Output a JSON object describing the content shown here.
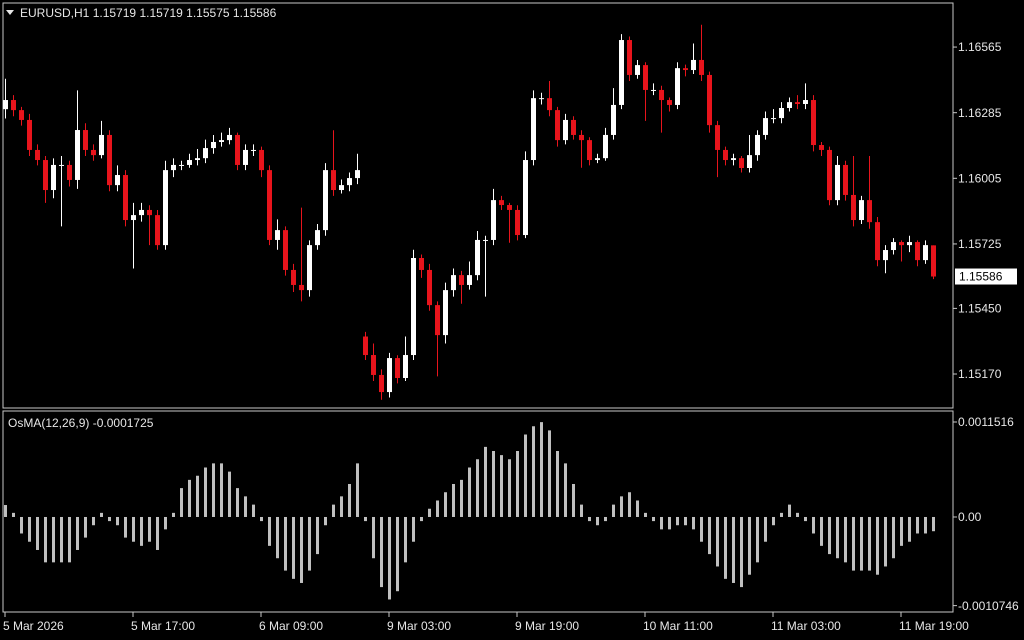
{
  "chart_data": [
    {
      "type": "candlestick",
      "symbol": "EURUSD,H1",
      "categories": [
        "5 Mar 2026",
        null,
        null,
        null,
        null,
        null,
        null,
        null,
        null,
        null,
        null,
        null,
        null,
        null,
        null,
        null,
        "5 Mar 17:00",
        null,
        null,
        null,
        null,
        null,
        null,
        null,
        null,
        null,
        null,
        null,
        null,
        null,
        null,
        null,
        "6 Mar 09:00",
        null,
        null,
        null,
        null,
        null,
        null,
        null,
        null,
        null,
        null,
        null,
        null,
        null,
        null,
        null,
        "9 Mar 03:00",
        null,
        null,
        null,
        null,
        null,
        null,
        null,
        null,
        null,
        null,
        null,
        null,
        null,
        null,
        null,
        "9 Mar 19:00",
        null,
        null,
        null,
        null,
        null,
        null,
        null,
        null,
        null,
        null,
        null,
        null,
        null,
        null,
        null,
        "10 Mar 11:00",
        null,
        null,
        null,
        null,
        null,
        null,
        null,
        null,
        null,
        null,
        null,
        null,
        null,
        null,
        null,
        "11 Mar 03:00",
        null,
        null,
        null,
        null,
        null,
        null,
        null,
        null,
        null,
        null,
        null,
        null,
        null,
        null,
        null,
        "11 Mar 19:00",
        null,
        null,
        null,
        null
      ],
      "ohlc": [
        [
          1.163,
          1.1643,
          1.1626,
          1.16339
        ],
        [
          1.16339,
          1.1636,
          1.1627,
          1.16296
        ],
        [
          1.16296,
          1.1631,
          1.1623,
          1.16254
        ],
        [
          1.16254,
          1.1628,
          1.161,
          1.16126
        ],
        [
          1.16126,
          1.1615,
          1.1606,
          1.16083
        ],
        [
          1.16083,
          1.161,
          1.159,
          1.15955
        ],
        [
          1.15955,
          1.1609,
          1.1592,
          1.16062
        ],
        [
          1.16062,
          1.161,
          1.158,
          1.16062
        ],
        [
          1.16062,
          1.1608,
          1.1597,
          1.15998
        ],
        [
          1.15998,
          1.1638,
          1.1596,
          1.16211
        ],
        [
          1.16211,
          1.1624,
          1.161,
          1.16126
        ],
        [
          1.16126,
          1.1615,
          1.1608,
          1.16104
        ],
        [
          1.16104,
          1.1625,
          1.1609,
          1.1619
        ],
        [
          1.1619,
          1.1621,
          1.1595,
          1.15976
        ],
        [
          1.15976,
          1.1606,
          1.1595,
          1.16019
        ],
        [
          1.16019,
          1.1604,
          1.158,
          1.15827
        ],
        [
          1.15827,
          1.159,
          1.1562,
          1.15848
        ],
        [
          1.15848,
          1.159,
          1.1582,
          1.1587
        ],
        [
          1.1587,
          1.1589,
          1.1572,
          1.15848
        ],
        [
          1.15848,
          1.1587,
          1.157,
          1.1572
        ],
        [
          1.1572,
          1.1608,
          1.157,
          1.1604
        ],
        [
          1.1604,
          1.1609,
          1.1601,
          1.16062
        ],
        [
          1.16062,
          1.1608,
          1.1604,
          1.16062
        ],
        [
          1.16062,
          1.1611,
          1.1605,
          1.16083
        ],
        [
          1.16083,
          1.1613,
          1.1606,
          1.16091
        ],
        [
          1.16091,
          1.1617,
          1.1607,
          1.16134
        ],
        [
          1.16134,
          1.1619,
          1.1611,
          1.1616
        ],
        [
          1.1616,
          1.162,
          1.1614,
          1.16168
        ],
        [
          1.16168,
          1.1622,
          1.1615,
          1.1619
        ],
        [
          1.1619,
          1.162,
          1.1604,
          1.16062
        ],
        [
          1.16062,
          1.1615,
          1.1604,
          1.16126
        ],
        [
          1.16126,
          1.1615,
          1.161,
          1.16126
        ],
        [
          1.16126,
          1.1614,
          1.1601,
          1.1604
        ],
        [
          1.1604,
          1.1606,
          1.1572,
          1.15742
        ],
        [
          1.15742,
          1.1583,
          1.157,
          1.15784
        ],
        [
          1.15784,
          1.158,
          1.1559,
          1.15614
        ],
        [
          1.15614,
          1.1564,
          1.1552,
          1.1555
        ],
        [
          1.1555,
          1.1588,
          1.1548,
          1.15528
        ],
        [
          1.15528,
          1.1574,
          1.155,
          1.1572
        ],
        [
          1.1572,
          1.1581,
          1.157,
          1.15784
        ],
        [
          1.15784,
          1.1607,
          1.1576,
          1.1604
        ],
        [
          1.1604,
          1.1621,
          1.1593,
          1.15955
        ],
        [
          1.15955,
          1.16,
          1.1594,
          1.15976
        ],
        [
          1.15976,
          1.1603,
          1.1595,
          1.16006
        ],
        [
          1.16006,
          1.1611,
          1.1598,
          1.1604
        ],
        [
          1.1533,
          1.1535,
          1.1523,
          1.15251
        ],
        [
          1.15251,
          1.153,
          1.1514,
          1.15166
        ],
        [
          1.15166,
          1.1519,
          1.1506,
          1.15093
        ],
        [
          1.15093,
          1.1526,
          1.1507,
          1.15238
        ],
        [
          1.15238,
          1.1525,
          1.1513,
          1.15153
        ],
        [
          1.15153,
          1.1533,
          1.1514,
          1.15251
        ],
        [
          1.15251,
          1.157,
          1.1523,
          1.15665
        ],
        [
          1.15665,
          1.1568,
          1.1558,
          1.15614
        ],
        [
          1.15614,
          1.1564,
          1.1544,
          1.15464
        ],
        [
          1.15464,
          1.1548,
          1.1516,
          1.15336
        ],
        [
          1.15336,
          1.1556,
          1.153,
          1.15528
        ],
        [
          1.15528,
          1.1562,
          1.155,
          1.15592
        ],
        [
          1.15592,
          1.1561,
          1.1547,
          1.1555
        ],
        [
          1.1555,
          1.1565,
          1.1553,
          1.15592
        ],
        [
          1.15592,
          1.1578,
          1.1557,
          1.15742
        ],
        [
          1.15742,
          1.1576,
          1.155,
          1.15742
        ],
        [
          1.15742,
          1.1596,
          1.1572,
          1.15912
        ],
        [
          1.15912,
          1.1593,
          1.1587,
          1.15891
        ],
        [
          1.15891,
          1.159,
          1.1573,
          1.1587
        ],
        [
          1.1587,
          1.1589,
          1.1574,
          1.15763
        ],
        [
          1.15763,
          1.1612,
          1.1575,
          1.16083
        ],
        [
          1.16083,
          1.1638,
          1.1606,
          1.16347
        ],
        [
          1.16347,
          1.1637,
          1.1632,
          1.16347
        ],
        [
          1.16347,
          1.1642,
          1.1627,
          1.16296
        ],
        [
          1.16296,
          1.1631,
          1.1614,
          1.16168
        ],
        [
          1.16168,
          1.1628,
          1.1615,
          1.16254
        ],
        [
          1.16254,
          1.1627,
          1.1617,
          1.1619
        ],
        [
          1.1619,
          1.1621,
          1.1605,
          1.16168
        ],
        [
          1.16168,
          1.1618,
          1.1606,
          1.16083
        ],
        [
          1.16083,
          1.1611,
          1.1607,
          1.16091
        ],
        [
          1.16091,
          1.1622,
          1.1608,
          1.1619
        ],
        [
          1.1619,
          1.1639,
          1.1617,
          1.16318
        ],
        [
          1.16318,
          1.1662,
          1.163,
          1.16595
        ],
        [
          1.16595,
          1.1661,
          1.1642,
          1.16446
        ],
        [
          1.16446,
          1.1651,
          1.1643,
          1.16488
        ],
        [
          1.16488,
          1.165,
          1.1625,
          1.16382
        ],
        [
          1.16382,
          1.1641,
          1.1636,
          1.16382
        ],
        [
          1.16382,
          1.164,
          1.162,
          1.16339
        ],
        [
          1.16339,
          1.1635,
          1.1629,
          1.16318
        ],
        [
          1.16318,
          1.165,
          1.163,
          1.16475
        ],
        [
          1.16475,
          1.1649,
          1.1644,
          1.16467
        ],
        [
          1.16467,
          1.1658,
          1.1645,
          1.1651
        ],
        [
          1.1651,
          1.1666,
          1.1642,
          1.16446
        ],
        [
          1.16446,
          1.1646,
          1.162,
          1.16232
        ],
        [
          1.16232,
          1.1625,
          1.1601,
          1.16126
        ],
        [
          1.16126,
          1.1614,
          1.1606,
          1.16083
        ],
        [
          1.16083,
          1.1611,
          1.1606,
          1.16091
        ],
        [
          1.16091,
          1.161,
          1.1603,
          1.16049
        ],
        [
          1.16049,
          1.1619,
          1.1603,
          1.16104
        ],
        [
          1.16104,
          1.1621,
          1.1608,
          1.1619
        ],
        [
          1.1619,
          1.1629,
          1.1617,
          1.16262
        ],
        [
          1.16262,
          1.163,
          1.1624,
          1.16262
        ],
        [
          1.16262,
          1.1633,
          1.1624,
          1.16305
        ],
        [
          1.16305,
          1.1635,
          1.1629,
          1.1633
        ],
        [
          1.1633,
          1.1636,
          1.163,
          1.16322
        ],
        [
          1.16322,
          1.1641,
          1.163,
          1.16339
        ],
        [
          1.16339,
          1.1636,
          1.1612,
          1.16147
        ],
        [
          1.16147,
          1.1616,
          1.161,
          1.16126
        ],
        [
          1.16126,
          1.1614,
          1.1589,
          1.15912
        ],
        [
          1.15912,
          1.161,
          1.1589,
          1.16062
        ],
        [
          1.16062,
          1.1608,
          1.1591,
          1.15934
        ],
        [
          1.15934,
          1.161,
          1.158,
          1.15827
        ],
        [
          1.15827,
          1.1593,
          1.1581,
          1.15912
        ],
        [
          1.15912,
          1.161,
          1.1579,
          1.15818
        ],
        [
          1.15818,
          1.1584,
          1.1563,
          1.15656
        ],
        [
          1.15656,
          1.1572,
          1.156,
          1.15699
        ],
        [
          1.15699,
          1.1575,
          1.1568,
          1.15733
        ],
        [
          1.15733,
          1.1574,
          1.1565,
          1.1572
        ],
        [
          1.1572,
          1.1576,
          1.1569,
          1.15733
        ],
        [
          1.15733,
          1.1574,
          1.1563,
          1.15656
        ],
        [
          1.15656,
          1.1574,
          1.1564,
          1.1572
        ],
        [
          1.15719,
          1.15719,
          1.15575,
          1.15586
        ]
      ],
      "bull_color": "#ffffff",
      "bear_color": "#e8141c",
      "ylim": [
        1.15025,
        1.16753
      ],
      "yticks": [
        1.16565,
        1.16285,
        1.16005,
        1.15725,
        {
          "value": 1.1545,
          "label": "1.15450"
        },
        {
          "value": 1.1517,
          "label": "1.15170"
        }
      ]
    },
    {
      "type": "bar",
      "title": "OsMA(12,26,9)",
      "color": "#c0c0c0",
      "values": [
        0.000145,
        5e-05,
        -0.0002,
        -0.0003,
        -0.0004,
        -0.00055,
        -0.00055,
        -0.00055,
        -0.00055,
        -0.0004,
        -0.00025,
        -0.0001,
        5e-05,
        -5e-05,
        -0.0001,
        -0.00025,
        -0.0003,
        -0.00035,
        -0.0003,
        -0.0004,
        -0.00015,
        5e-05,
        0.00035,
        0.00045,
        0.0005,
        0.0006,
        0.00065,
        0.00065,
        0.00055,
        0.00035,
        0.00025,
        0.00015,
        -5e-05,
        -0.00035,
        -0.0005,
        -0.00065,
        -0.00075,
        -0.0008,
        -0.00065,
        -0.00045,
        -0.0001,
        0.00015,
        0.00025,
        0.0004,
        0.00065,
        -5e-05,
        -0.0005,
        -0.00085,
        -0.001,
        -0.0009,
        -0.00055,
        -0.0003,
        -5e-05,
        0.0001,
        0.0002,
        0.0003,
        0.0004,
        0.00045,
        0.0006,
        0.0007,
        0.00085,
        0.0008,
        0.00075,
        0.0007,
        0.0008,
        0.001,
        0.0011,
        0.00115,
        0.00105,
        0.0008,
        0.00065,
        0.0004,
        0.00015,
        -5e-05,
        -0.0001,
        -5e-05,
        0.00015,
        0.00025,
        0.0003,
        0.0002,
        5e-05,
        -5e-05,
        -0.00015,
        -0.00015,
        -0.0001,
        -0.0001,
        -0.00015,
        -0.0003,
        -0.00045,
        -0.0006,
        -0.00075,
        -0.0008,
        -0.00085,
        -0.0007,
        -0.00055,
        -0.0003,
        -0.0001,
        5e-05,
        0.00015,
        5e-05,
        -5e-05,
        -0.0002,
        -0.00035,
        -0.00045,
        -0.0005,
        -0.00055,
        -0.00065,
        -0.00065,
        -0.00065,
        -0.0007,
        -0.0006,
        -0.0005,
        -0.00035,
        -0.0003,
        -0.0002,
        -0.0002,
        -0.0001725
      ],
      "ylim": [
        -0.001152,
        0.001285
      ],
      "yticks": [
        0.0011516,
        {
          "value": 0,
          "label": "0.00"
        },
        -0.0010746
      ]
    }
  ]
}
